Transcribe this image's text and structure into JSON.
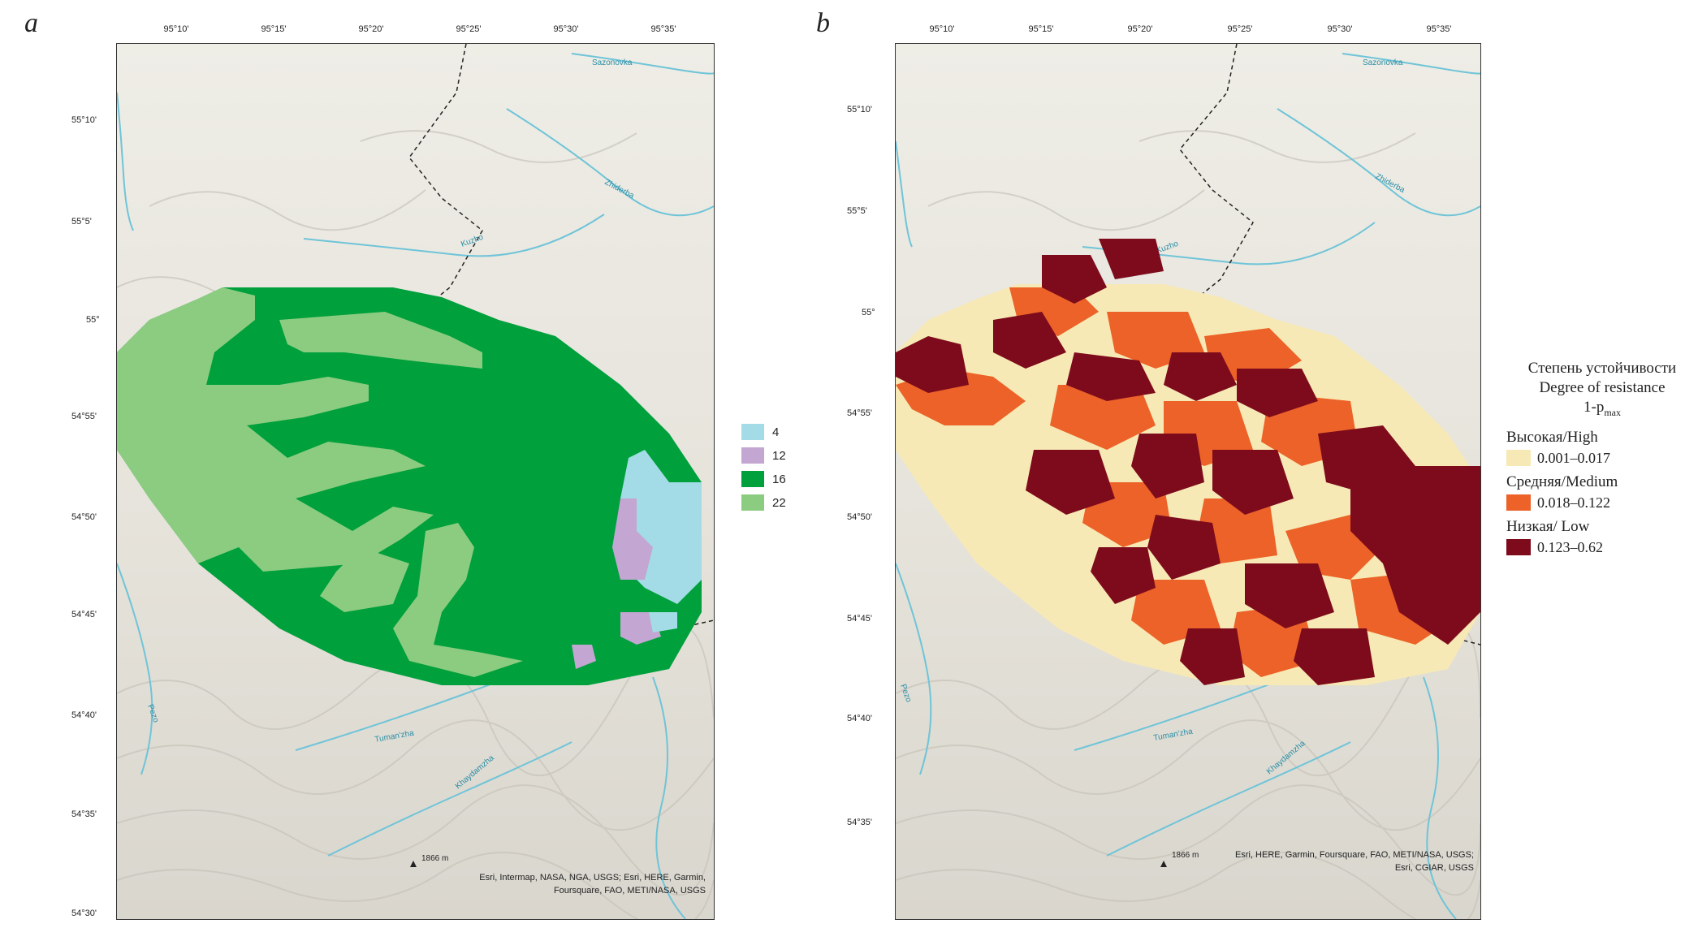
{
  "panels": [
    {
      "letter": "a",
      "lon_ticks": [
        "95°10'",
        "95°15'",
        "95°20'",
        "95°25'",
        "95°30'",
        "95°35'"
      ],
      "lat_ticks": [
        "55°10'",
        "55°5'",
        "55°",
        "54°55'",
        "54°50'",
        "54°45'",
        "54°40'",
        "54°35'",
        "54°30'"
      ],
      "rivers": [
        "Sazonovka",
        "Zhiderba",
        "Kuzho",
        "Pezo",
        "Tuman'zha",
        "Khaydamzha"
      ],
      "peak": "1866 m",
      "credit_lines": [
        "Esri, Intermap, NASA, NGA, USGS; Esri, HERE, Garmin,",
        "Foursquare, FAO, METI/NASA, USGS"
      ],
      "legend": [
        {
          "label": "4",
          "color": "#a3dce6"
        },
        {
          "label": "12",
          "color": "#c3a6d2"
        },
        {
          "label": "16",
          "color": "#00a03c"
        },
        {
          "label": "22",
          "color": "#8ccc80"
        }
      ]
    },
    {
      "letter": "b",
      "lon_ticks": [
        "95°10'",
        "95°15'",
        "95°20'",
        "95°25'",
        "95°30'",
        "95°35'"
      ],
      "lat_ticks": [
        "55°10'",
        "55°5'",
        "55°",
        "54°55'",
        "54°50'",
        "54°45'",
        "54°40'",
        "54°35'"
      ],
      "rivers": [
        "Sazonovka",
        "Zhiderba",
        "Kuzho",
        "Pezo",
        "Tuman'zha",
        "Khaydamzha"
      ],
      "peak": "1866 m",
      "credit_lines": [
        "Esri, HERE, Garmin, Foursquare, FAO, METI/NASA, USGS;",
        "Esri, CGIAR, USGS"
      ],
      "legend": {
        "title_lines": [
          "Степень устойчивости",
          "Degree of resistance"
        ],
        "formula_base": "1-p",
        "formula_sub": "max",
        "classes": [
          {
            "name": "Высокая/High",
            "range": "0.001–0.017",
            "color": "#f7e9b5"
          },
          {
            "name": "Средняя/Medium",
            "range": "0.018–0.122",
            "color": "#ec6228"
          },
          {
            "name": "Низкая/ Low",
            "range": "0.123–0.62",
            "color": "#7d0b1c"
          }
        ]
      }
    }
  ],
  "colors": {
    "map_bg": "#eceae3",
    "river": "#6fc4d8",
    "border": "#222222"
  }
}
